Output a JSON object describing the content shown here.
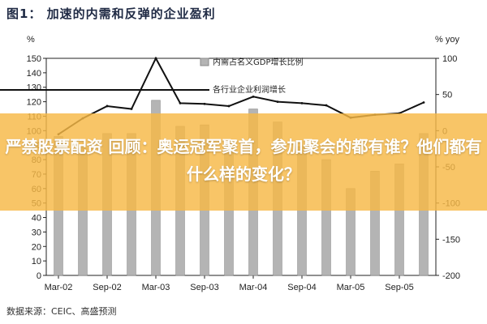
{
  "figure_title": "图1： 加速的内需和反弹的企业盈利",
  "source": "数据来源：CEIC、高盛预测",
  "overlay_headline": "严禁股票配资 回顾：奥运冠军聚首，参加聚会的都有谁？他们都有什么样的变化？",
  "colors": {
    "bar": "#b4b4b4",
    "bar_stroke": "#8a8a8a",
    "line": "#111111",
    "overlay": "#f6b846"
  },
  "chart_data": {
    "type": "bar",
    "title": "",
    "left_unit": "%",
    "right_unit": "% yoy",
    "ylim": [
      0,
      150
    ],
    "y2lim": [
      -200,
      100
    ],
    "left_ticks": [
      0,
      10,
      20,
      30,
      40,
      50,
      60,
      70,
      80,
      90,
      100,
      110,
      120,
      130,
      140,
      150
    ],
    "right_ticks": [
      100,
      50,
      0,
      -50,
      -100,
      -150,
      -200
    ],
    "x_tick_labels": [
      "Mar-02",
      "Sep-02",
      "Mar-03",
      "Sep-03",
      "Mar-04",
      "Sep-04",
      "Mar-05",
      "Sep-05"
    ],
    "categories": [
      "Mar-02",
      "Jun-02",
      "Sep-02",
      "Dec-02",
      "Mar-03",
      "Jun-03",
      "Sep-03",
      "Dec-03",
      "Mar-04",
      "Jun-04",
      "Sep-04",
      "Dec-04",
      "Mar-05",
      "Jun-05",
      "Sep-05",
      "Dec-05"
    ],
    "series": [
      {
        "name": "内需占名义GDP增长比例",
        "type": "bar",
        "axis": "left",
        "values": [
          96,
          88,
          98,
          98,
          121,
          103,
          104,
          93,
          115,
          106,
          89,
          80,
          60,
          72,
          77,
          98
        ]
      },
      {
        "name": "各行业企业利润增长",
        "type": "line",
        "axis": "right",
        "values": [
          -5,
          17,
          34,
          30,
          100,
          38,
          37,
          34,
          47,
          40,
          38,
          35,
          18,
          22,
          24,
          39
        ]
      }
    ],
    "legend_position": "top-center",
    "grid": false
  }
}
